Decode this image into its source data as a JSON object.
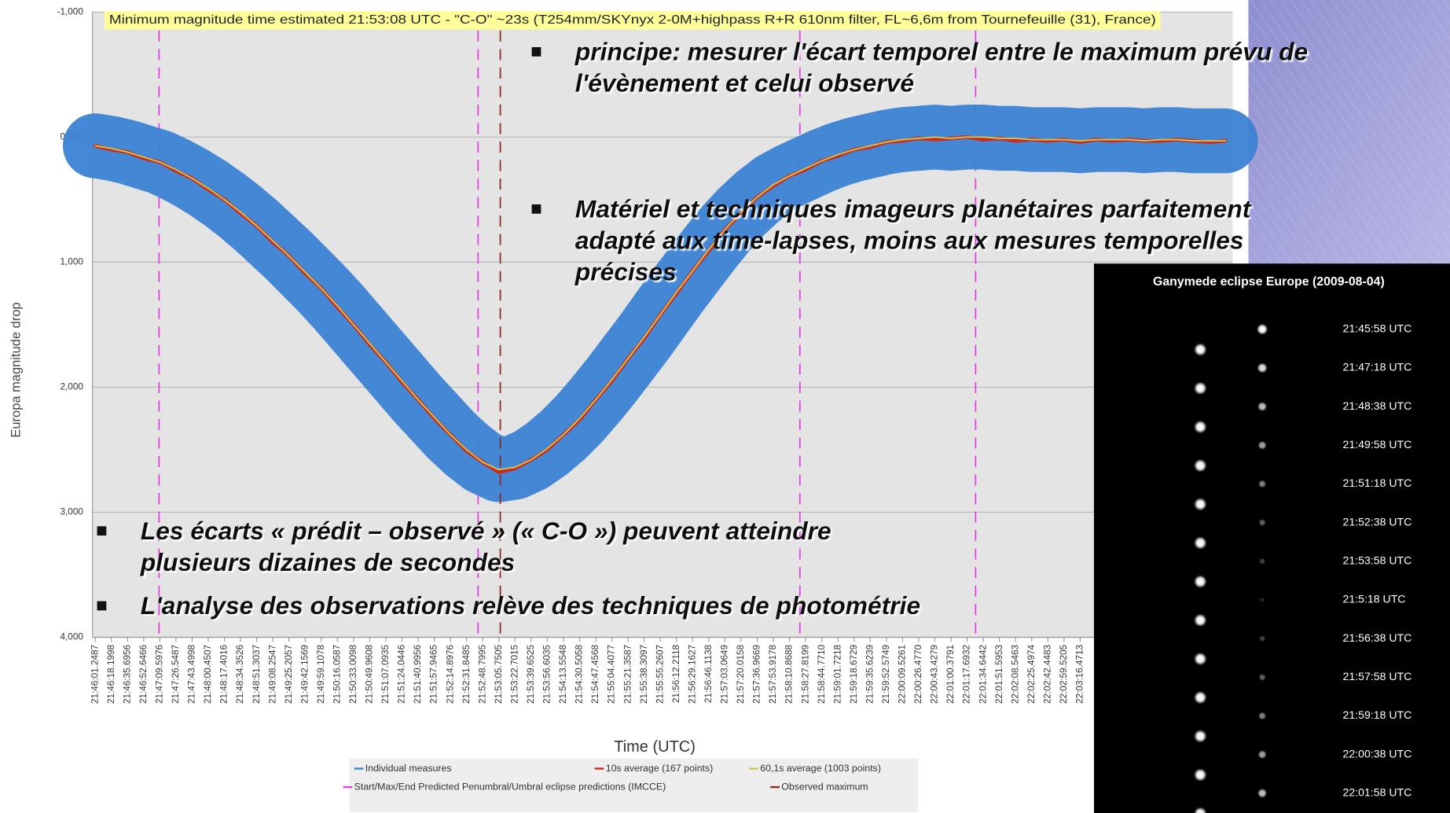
{
  "chart_data": {
    "type": "line",
    "annotation": "Minimum magnitude time estimated 21:53:08 UTC - \"C-O\" ~23s (T254mm/SKYnyx 2-0M+highpass R+R 610nm filter, FL~6,6m from Tournefeuille (31), France)",
    "y_label": "Europa magnitude drop",
    "x_label": "Time (UTC)",
    "categories": [
      "21:46:01.2487",
      "21:46:18.1998",
      "21:46:35.6956",
      "21:46:52.6466",
      "21:47:09.5976",
      "21:47:26.5487",
      "21:47:43.4998",
      "21:48:00.4507",
      "21:48:17.4016",
      "21:48:34.3526",
      "21:48:51.3037",
      "21:49:08.2547",
      "21:49:25.2057",
      "21:49:42.1569",
      "21:49:59.1078",
      "21:50:16.0587",
      "21:50:33.0098",
      "21:50:49.9608",
      "21:51:07.0935",
      "21:51:24.0446",
      "21:51:40.9956",
      "21:51:57.9465",
      "21:52:14.8976",
      "21:52:31.8485",
      "21:52:48.7995",
      "21:53:05.7505",
      "21:53:22.7015",
      "21:53:39.6525",
      "21:53:56.6035",
      "21:54:13.5548",
      "21:54:30.5058",
      "21:54:47.4568",
      "21:55:04.4077",
      "21:55:21.3587",
      "21:55:38.3097",
      "21:55:55.2607",
      "21:56:12.2118",
      "21:56:29.1627",
      "21:56:46.1138",
      "21:57:03.0649",
      "21:57:20.0158",
      "21:57:36.9669",
      "21:57:53.9178",
      "21:58:10.8688",
      "21:58:27.8199",
      "21:58:44.7710",
      "21:59:01.7218",
      "21:59:18.6729",
      "21:59:35.6239",
      "21:59:52.5749",
      "22:00:09.5261",
      "22:00:26.4770",
      "22:00:43.4279",
      "22:01:00.3791",
      "22:01:17.6932",
      "22:01:34.6442",
      "22:01:51.5953",
      "22:02:08.5463",
      "22:02:25.4974",
      "22:02:42.4483",
      "22:02:59.5205",
      "22:03:16.4713",
      null,
      null,
      null,
      null,
      null,
      null,
      null,
      null,
      null
    ],
    "series": [
      {
        "name": "Individual measures",
        "color": "#3b82d4",
        "style": "band",
        "values": [
          0.07,
          0.09,
          0.12,
          0.16,
          0.2,
          0.26,
          0.33,
          0.41,
          0.5,
          0.6,
          0.71,
          0.83,
          0.95,
          1.08,
          1.21,
          1.35,
          1.5,
          1.65,
          1.8,
          1.95,
          2.1,
          2.24,
          2.38,
          2.5,
          2.6,
          2.66,
          2.64,
          2.58,
          2.49,
          2.38,
          2.25,
          2.1,
          1.94,
          1.77,
          1.6,
          1.42,
          1.24,
          1.07,
          0.9,
          0.74,
          0.6,
          0.48,
          0.38,
          0.31,
          0.25,
          0.19,
          0.14,
          0.1,
          0.07,
          0.04,
          0.02,
          0.01,
          0.0,
          0.01,
          0.0,
          0.0,
          0.01,
          0.01,
          0.02,
          0.02,
          0.02,
          0.03,
          0.02,
          0.02,
          0.02,
          0.03,
          0.02,
          0.02,
          0.03,
          0.03,
          0.03
        ]
      },
      {
        "name": "10s average (167 points)",
        "color": "#cc2a1a",
        "style": "thick",
        "values": [
          0.07,
          0.1,
          0.12,
          0.17,
          0.2,
          0.27,
          0.33,
          0.42,
          0.5,
          0.61,
          0.71,
          0.84,
          0.95,
          1.09,
          1.21,
          1.36,
          1.5,
          1.66,
          1.8,
          1.96,
          2.1,
          2.25,
          2.38,
          2.51,
          2.6,
          2.68,
          2.65,
          2.58,
          2.5,
          2.38,
          2.26,
          2.1,
          1.95,
          1.77,
          1.61,
          1.42,
          1.25,
          1.07,
          0.91,
          0.74,
          0.61,
          0.48,
          0.39,
          0.31,
          0.26,
          0.19,
          0.15,
          0.1,
          0.08,
          0.04,
          0.03,
          0.01,
          0.02,
          0.01,
          0.0,
          0.02,
          0.01,
          0.03,
          0.02,
          0.03,
          0.02,
          0.04,
          0.02,
          0.03,
          0.02,
          0.03,
          0.03,
          0.02,
          0.03,
          0.04,
          0.03
        ]
      },
      {
        "name": "60,1s average (1003 points)",
        "color": "#c9c95a",
        "style": "thin",
        "values": [
          0.07,
          0.09,
          0.12,
          0.16,
          0.2,
          0.26,
          0.33,
          0.41,
          0.5,
          0.6,
          0.71,
          0.83,
          0.95,
          1.08,
          1.21,
          1.35,
          1.5,
          1.65,
          1.8,
          1.95,
          2.1,
          2.24,
          2.38,
          2.5,
          2.6,
          2.66,
          2.64,
          2.58,
          2.49,
          2.38,
          2.25,
          2.1,
          1.94,
          1.77,
          1.6,
          1.42,
          1.24,
          1.07,
          0.9,
          0.74,
          0.6,
          0.48,
          0.38,
          0.31,
          0.25,
          0.19,
          0.14,
          0.1,
          0.07,
          0.04,
          0.02,
          0.01,
          0.0,
          0.01,
          0.0,
          0.0,
          0.01,
          0.01,
          0.02,
          0.02,
          0.02,
          0.03,
          0.02,
          0.02,
          0.02,
          0.03,
          0.02,
          0.02,
          0.03,
          0.03,
          0.03
        ]
      }
    ],
    "markers": [
      {
        "name": "Start/Max/End Predicted Penumbral/Umbral eclipse predictions (IMCCE)",
        "color": "#e040e0"
      },
      {
        "name": "Observed maximum",
        "color": "#8b2a1a"
      }
    ],
    "ylim": [
      -1,
      4
    ],
    "y_inverted": true,
    "yticks": [
      {
        "value": -1,
        "label": "-1,000"
      },
      {
        "value": 0,
        "label": "0,000"
      },
      {
        "value": 1,
        "label": "1,000"
      },
      {
        "value": 2,
        "label": "2,000"
      },
      {
        "value": 3,
        "label": "3,000"
      },
      {
        "value": 4,
        "label": "4,000"
      }
    ],
    "grid": true
  },
  "slide": {
    "bullets": [
      {
        "lines": [
          "principe: mesurer l'écart  temporel entre le maximum prévu de",
          "l'évènement et celui observé"
        ]
      },
      {
        "lines": [
          "Matériel et techniques imageurs planétaires parfaitement",
          "adapté aux time-lapses, moins aux mesures temporelles",
          "précises"
        ]
      },
      {
        "lines": [
          "Les écarts « prédit – observé » (« C-O ») peuvent atteindre",
          "plusieurs dizaines de secondes"
        ]
      },
      {
        "lines": [
          "L'analyse des observations relève des techniques de photométrie"
        ]
      }
    ]
  },
  "image_panel": {
    "title": "Ganymede eclipse  Europe (2009-08-04)",
    "times": [
      "21:45:58 UTC",
      "21:47:18 UTC",
      "21:48:38 UTC",
      "21:49:58 UTC",
      "21:51:18 UTC",
      "21:52:38 UTC",
      "21:53:58 UTC",
      "21:5:18 UTC",
      "21:56:38 UTC",
      "21:57:58 UTC",
      "21:59:18 UTC",
      "22:00:38 UTC",
      "22:01:58 UTC"
    ]
  }
}
